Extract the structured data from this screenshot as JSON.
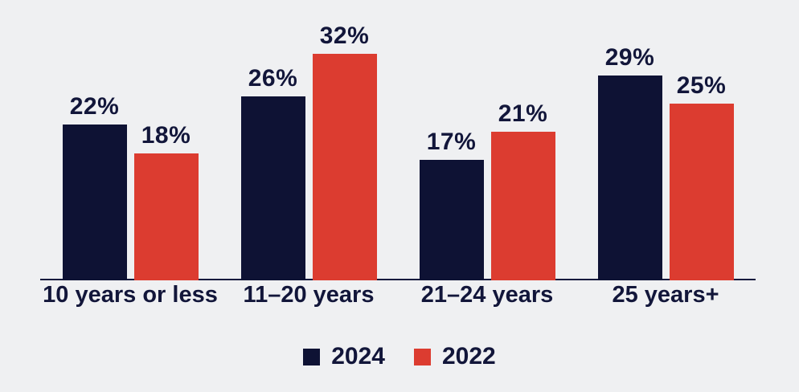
{
  "chart_data": {
    "type": "bar",
    "title": "",
    "categories": [
      "10 years or less",
      "11–20 years",
      "21–24 years",
      "25 years+"
    ],
    "series": [
      {
        "name": "2024",
        "color": "#0E1234",
        "values": [
          22,
          26,
          17,
          29
        ]
      },
      {
        "name": "2022",
        "color": "#DC3C30",
        "values": [
          18,
          32,
          21,
          25
        ]
      }
    ],
    "value_suffix": "%",
    "ylim": [
      0,
      35
    ],
    "grid": false,
    "legend_position": "bottom-center",
    "background_color": "#EFF0F2",
    "axis_line_color": "#161A3D",
    "label_color": "#12163A"
  }
}
